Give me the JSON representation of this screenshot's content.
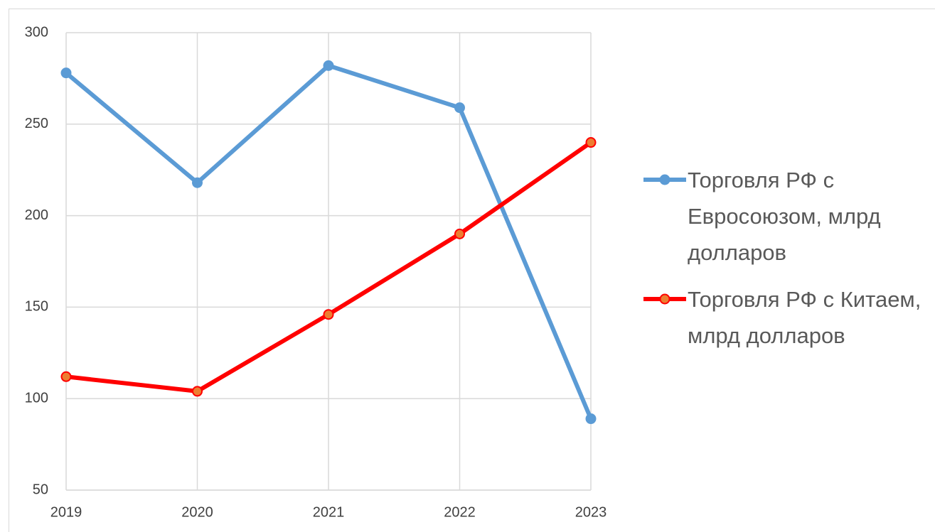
{
  "chart_data": {
    "type": "line",
    "categories": [
      "2019",
      "2020",
      "2021",
      "2022",
      "2023"
    ],
    "series": [
      {
        "name": "Торговля РФ с Евросоюзом, млрд долларов",
        "color": "#5b9bd5",
        "marker_color": "#5b9bd5",
        "values": [
          278,
          218,
          282,
          259,
          89
        ]
      },
      {
        "name": "Торговля РФ с Китаем, млрд долларов",
        "color": "#ff0000",
        "marker_color": "#ed7d31",
        "values": [
          112,
          104,
          146,
          190,
          240
        ]
      }
    ],
    "ylim": [
      50,
      300
    ],
    "yticks": [
      50,
      100,
      150,
      200,
      250,
      300
    ],
    "grid": true,
    "legend": "right"
  }
}
